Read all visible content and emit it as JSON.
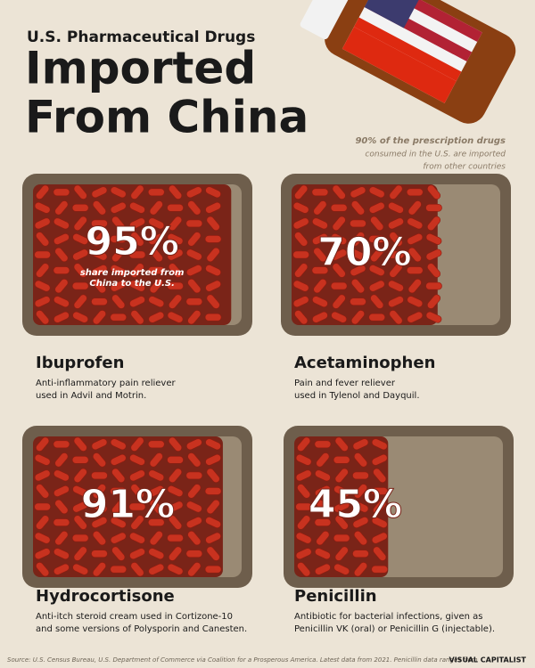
{
  "chart_data": {
    "type": "tray",
    "kicker": "U.S. Pharmaceutical Drugs",
    "title_lines": [
      "Imported",
      "From China"
    ],
    "annotation_lines": [
      "90% of the prescription drugs",
      "consumed in the U.S. are imported",
      "from other countries"
    ],
    "note_lines": [
      "share imported from",
      "China to the U.S."
    ],
    "categories": [
      "Ibuprofen",
      "Acetaminophen",
      "Hydrocortisone",
      "Penicillin"
    ],
    "values": [
      95,
      70,
      91,
      45
    ],
    "value_labels": [
      "95%",
      "70%",
      "91%",
      "45%"
    ],
    "descriptions": [
      [
        "Anti-inflammatory pain reliever",
        "used in Advil and Motrin."
      ],
      [
        "Pain and fever reliever",
        "used in Tylenol and Dayquil."
      ],
      [
        "Anti-itch steroid cream used in Cortizone-10",
        "and some versions of Polysporin and Canesten."
      ],
      [
        "Antibiotic for bacterial infections, given as",
        "Penicillin VK (oral) or Penicillin G (injectable)."
      ]
    ],
    "color": "#c8321f",
    "source": "Source: U.S. Census Bureau, U.S. Department of Commerce via Coalition for a Prosperous America. Latest data from 2021. Penicillin data ranges from",
    "brand": "VISUAL CAPITALIST"
  }
}
